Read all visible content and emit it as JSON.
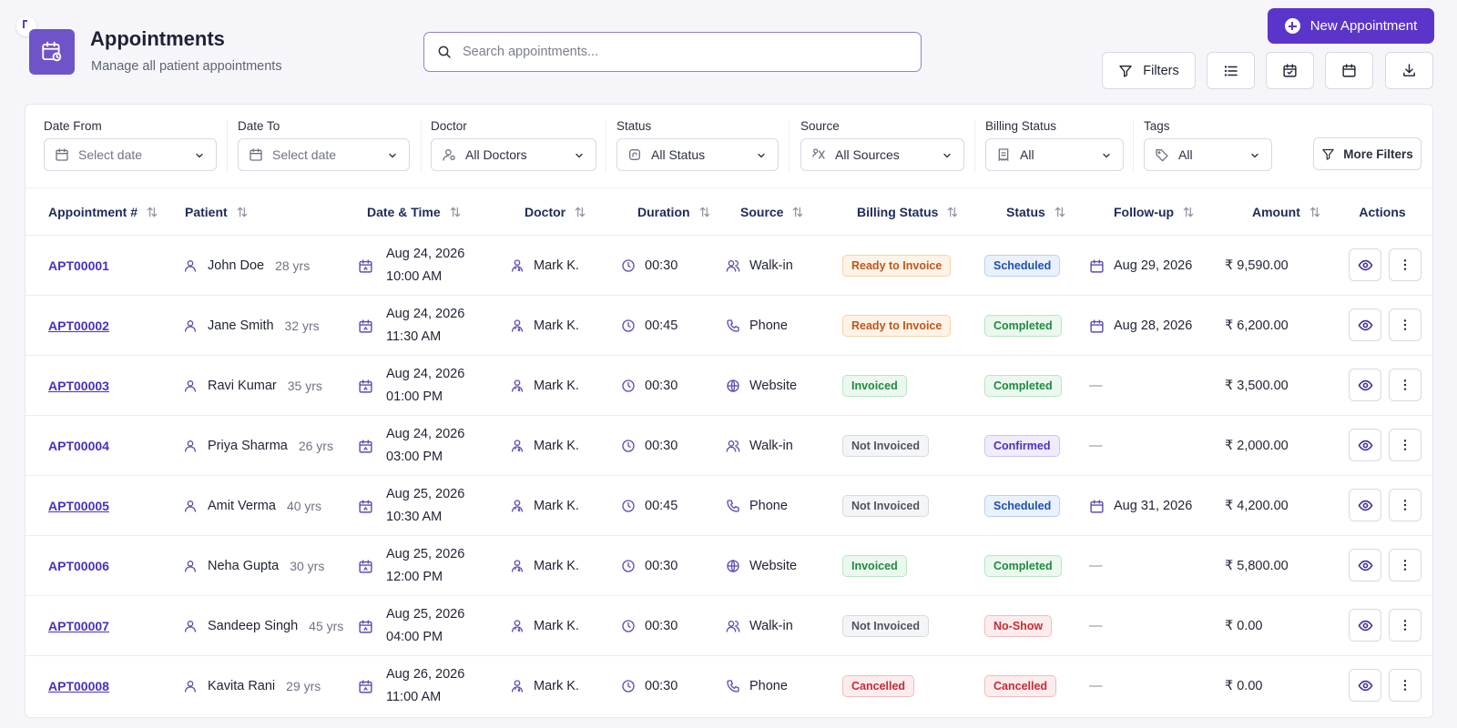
{
  "header": {
    "title": "Appointments",
    "subtitle": "Manage all patient appointments",
    "search_placeholder": "Search appointments...",
    "new_button": "New Appointment",
    "filters_button": "Filters"
  },
  "filters": {
    "date_from": {
      "label": "Date From",
      "value": "Select date"
    },
    "date_to": {
      "label": "Date To",
      "value": "Select date"
    },
    "doctor": {
      "label": "Doctor",
      "value": "All Doctors"
    },
    "status": {
      "label": "Status",
      "value": "All Status"
    },
    "source": {
      "label": "Source",
      "value": "All Sources"
    },
    "billing": {
      "label": "Billing Status",
      "value": "All"
    },
    "tags": {
      "label": "Tags",
      "value": "All"
    },
    "more": "More Filters"
  },
  "table": {
    "headers": [
      "Appointment #",
      "Patient",
      "Date & Time",
      "Doctor",
      "Duration",
      "Source",
      "Billing Status",
      "Status",
      "Follow-up",
      "Amount",
      "Actions"
    ],
    "rows": [
      {
        "id": "APT00001",
        "underline": false,
        "patient": "John Doe",
        "age": "28 yrs",
        "date": "Aug 24, 2026",
        "time": "10:00 AM",
        "doctor": "Mark K.",
        "duration": "00:30",
        "source": "Walk-in",
        "source_icon": "walk-in-icon",
        "billing": "Ready to Invoice",
        "billing_tone": "orange",
        "status": "Scheduled",
        "status_tone": "blue",
        "followup": "Aug 29, 2026",
        "amount": "₹ 9,590.00"
      },
      {
        "id": "APT00002",
        "underline": true,
        "patient": "Jane Smith",
        "age": "32 yrs",
        "date": "Aug 24, 2026",
        "time": "11:30 AM",
        "doctor": "Mark K.",
        "duration": "00:45",
        "source": "Phone",
        "source_icon": "phone-icon",
        "billing": "Ready to Invoice",
        "billing_tone": "orange",
        "status": "Completed",
        "status_tone": "green",
        "followup": "Aug 28, 2026",
        "amount": "₹ 6,200.00"
      },
      {
        "id": "APT00003",
        "underline": true,
        "patient": "Ravi Kumar",
        "age": "35 yrs",
        "date": "Aug 24, 2026",
        "time": "01:00 PM",
        "doctor": "Mark K.",
        "duration": "00:30",
        "source": "Website",
        "source_icon": "globe-icon",
        "billing": "Invoiced",
        "billing_tone": "green",
        "status": "Completed",
        "status_tone": "green",
        "followup": "—",
        "amount": "₹ 3,500.00"
      },
      {
        "id": "APT00004",
        "underline": false,
        "patient": "Priya Sharma",
        "age": "26 yrs",
        "date": "Aug 24, 2026",
        "time": "03:00 PM",
        "doctor": "Mark K.",
        "duration": "00:30",
        "source": "Walk-in",
        "source_icon": "walk-in-icon",
        "billing": "Not Invoiced",
        "billing_tone": "gray",
        "status": "Confirmed",
        "status_tone": "purple",
        "followup": "—",
        "amount": "₹ 2,000.00"
      },
      {
        "id": "APT00005",
        "underline": true,
        "patient": "Amit Verma",
        "age": "40 yrs",
        "date": "Aug 25, 2026",
        "time": "10:30 AM",
        "doctor": "Mark K.",
        "duration": "00:45",
        "source": "Phone",
        "source_icon": "phone-icon",
        "billing": "Not Invoiced",
        "billing_tone": "gray",
        "status": "Scheduled",
        "status_tone": "blue",
        "followup": "Aug 31, 2026",
        "amount": "₹ 4,200.00"
      },
      {
        "id": "APT00006",
        "underline": false,
        "patient": "Neha Gupta",
        "age": "30 yrs",
        "date": "Aug 25, 2026",
        "time": "12:00 PM",
        "doctor": "Mark K.",
        "duration": "00:30",
        "source": "Website",
        "source_icon": "globe-icon",
        "billing": "Invoiced",
        "billing_tone": "green",
        "status": "Completed",
        "status_tone": "green",
        "followup": "—",
        "amount": "₹ 5,800.00"
      },
      {
        "id": "APT00007",
        "underline": true,
        "patient": "Sandeep Singh",
        "age": "45 yrs",
        "date": "Aug 25, 2026",
        "time": "04:00 PM",
        "doctor": "Mark K.",
        "duration": "00:30",
        "source": "Walk-in",
        "source_icon": "walk-in-icon",
        "billing": "Not Invoiced",
        "billing_tone": "gray",
        "status": "No-Show",
        "status_tone": "red",
        "followup": "—",
        "amount": "₹ 0.00"
      },
      {
        "id": "APT00008",
        "underline": true,
        "patient": "Kavita Rani",
        "age": "29 yrs",
        "date": "Aug 26, 2026",
        "time": "11:00 AM",
        "doctor": "Mark K.",
        "duration": "00:30",
        "source": "Phone",
        "source_icon": "phone-icon",
        "billing": "Cancelled",
        "billing_tone": "red",
        "status": "Cancelled",
        "status_tone": "red",
        "followup": "—",
        "amount": "₹ 0.00"
      }
    ]
  },
  "colors": {
    "brand": "#5b35c9",
    "link": "#4b2fc0",
    "tones": {
      "orange": {
        "fg": "#c0561a",
        "bg": "#fff3e6",
        "bd": "#f6d3a8"
      },
      "green": {
        "fg": "#1f8a3e",
        "bg": "#eaf8ee",
        "bd": "#b9e6c6"
      },
      "blue": {
        "fg": "#1d4fb5",
        "bg": "#e9f1fd",
        "bd": "#b9d0f5"
      },
      "purple": {
        "fg": "#4b2fc0",
        "bg": "#f0ecfc",
        "bd": "#cfc3f4"
      },
      "gray": {
        "fg": "#4f5362",
        "bg": "#f4f5f7",
        "bd": "#d9dbe2"
      },
      "red": {
        "fg": "#c72b35",
        "bg": "#fdeced",
        "bd": "#f4bcc0"
      }
    }
  }
}
